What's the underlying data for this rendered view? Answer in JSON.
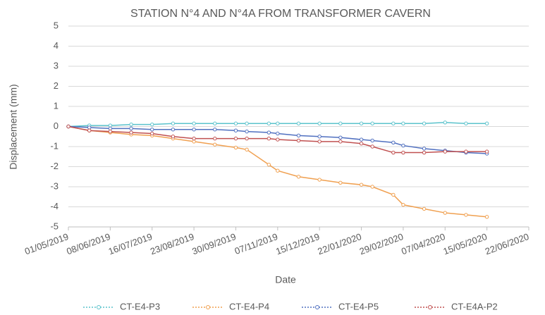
{
  "chart_data": {
    "type": "line",
    "title": "STATION N°4 AND N°4A FROM TRANSFORMER CAVERN",
    "x_label": "Date",
    "y_label": "Displacement (mm)",
    "x": [
      "01/05/2019",
      "20/05/2019",
      "08/06/2019",
      "27/06/2019",
      "16/07/2019",
      "04/08/2019",
      "23/08/2019",
      "11/09/2019",
      "30/09/2019",
      "10/10/2019",
      "30/10/2019",
      "07/11/2019",
      "26/11/2019",
      "15/12/2019",
      "03/01/2020",
      "22/01/2020",
      "01/02/2020",
      "20/02/2020",
      "29/02/2020",
      "19/03/2020",
      "07/04/2020",
      "26/04/2020",
      "15/05/2020"
    ],
    "series": [
      {
        "name": "CT-E4-P3",
        "color": "#5bc3cc",
        "values": [
          0,
          0.05,
          0.05,
          0.1,
          0.1,
          0.15,
          0.15,
          0.15,
          0.15,
          0.15,
          0.15,
          0.15,
          0.15,
          0.15,
          0.15,
          0.15,
          0.15,
          0.15,
          0.15,
          0.15,
          0.2,
          0.15,
          0.15
        ]
      },
      {
        "name": "CT-E4-P4",
        "color": "#f0a050",
        "values": [
          0,
          -0.2,
          -0.3,
          -0.4,
          -0.45,
          -0.6,
          -0.75,
          -0.9,
          -1.05,
          -1.15,
          -1.9,
          -2.2,
          -2.5,
          -2.65,
          -2.8,
          -2.9,
          -3.0,
          -3.4,
          -3.9,
          -4.1,
          -4.3,
          -4.4,
          -4.5
        ]
      },
      {
        "name": "CT-E4-P5",
        "color": "#5070c0",
        "values": [
          0,
          -0.05,
          -0.1,
          -0.1,
          -0.15,
          -0.15,
          -0.15,
          -0.15,
          -0.2,
          -0.25,
          -0.3,
          -0.35,
          -0.45,
          -0.5,
          -0.55,
          -0.65,
          -0.7,
          -0.8,
          -0.95,
          -1.1,
          -1.2,
          -1.3,
          -1.35
        ]
      },
      {
        "name": "CT-E4A-P2",
        "color": "#c05050",
        "values": [
          0,
          -0.2,
          -0.25,
          -0.3,
          -0.35,
          -0.5,
          -0.6,
          -0.6,
          -0.6,
          -0.6,
          -0.6,
          -0.65,
          -0.7,
          -0.75,
          -0.75,
          -0.85,
          -1.0,
          -1.3,
          -1.3,
          -1.3,
          -1.25,
          -1.25,
          -1.25
        ]
      }
    ],
    "xlim": [
      "01/05/2019",
      "22/06/2020"
    ],
    "xticks": [
      "01/05/2019",
      "08/06/2019",
      "16/07/2019",
      "23/08/2019",
      "30/09/2019",
      "07/11/2019",
      "15/12/2019",
      "22/01/2020",
      "29/02/2020",
      "07/04/2020",
      "15/05/2020",
      "22/06/2020"
    ],
    "ylim": [
      -5,
      5
    ],
    "yticks": [
      -5,
      -4,
      -3,
      -2,
      -1,
      0,
      1,
      2,
      3,
      4,
      5
    ],
    "grid": true,
    "legend": "bottom"
  }
}
